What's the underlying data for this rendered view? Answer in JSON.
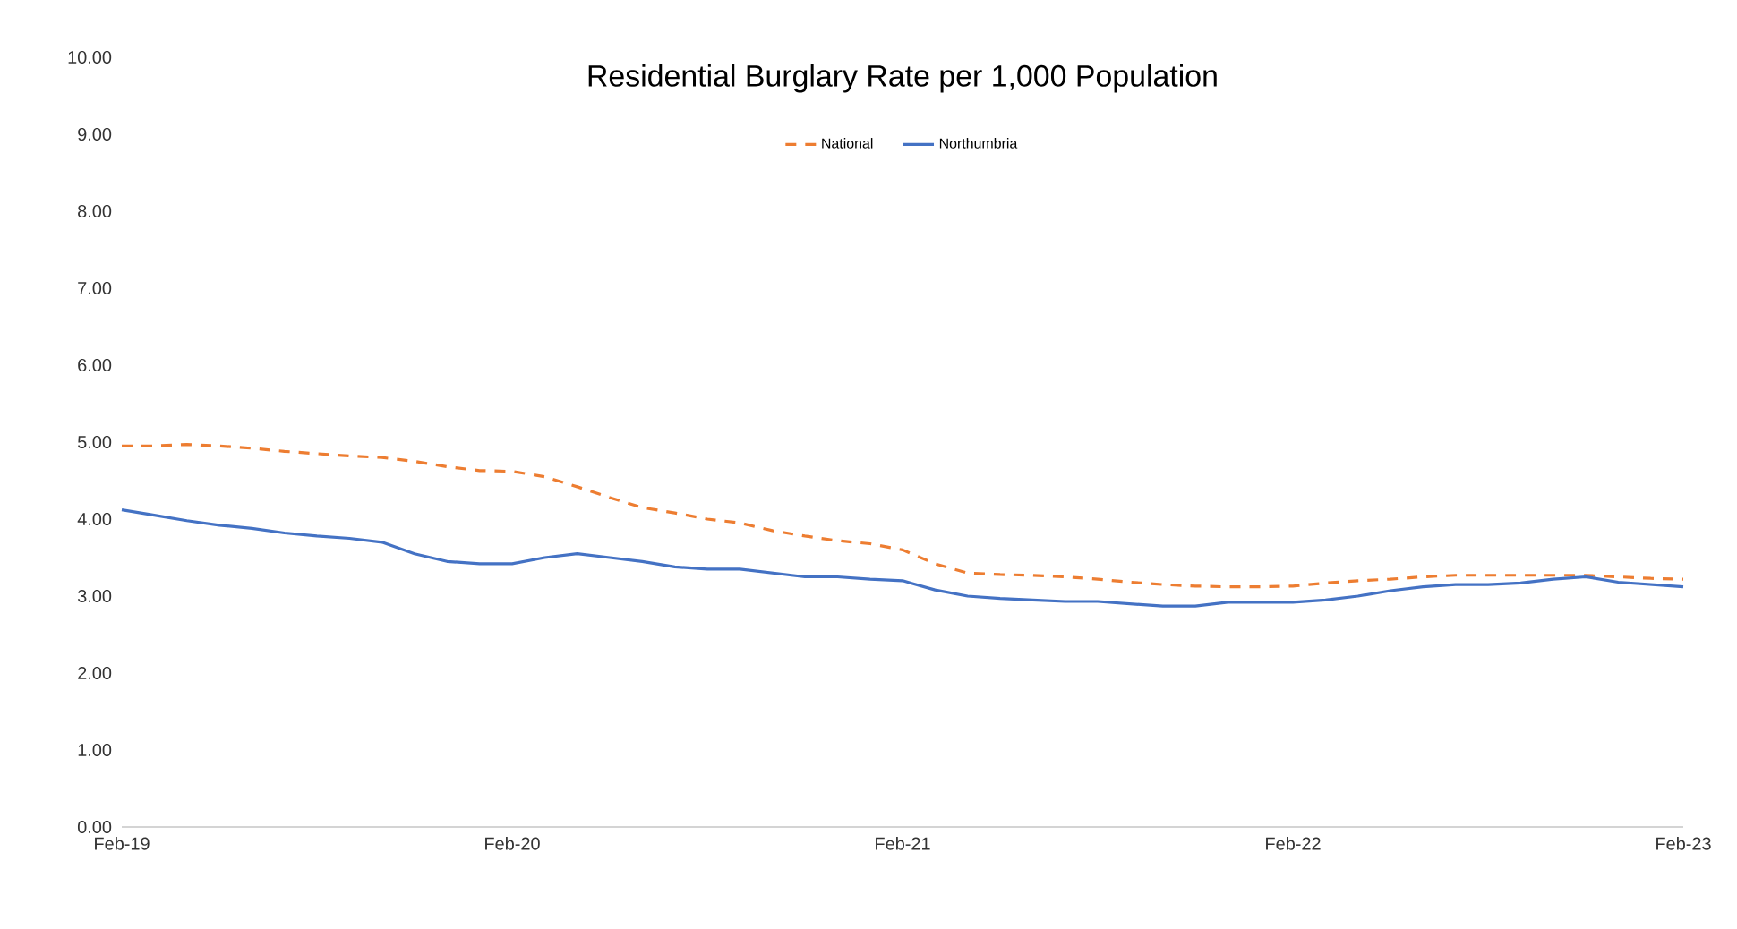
{
  "chart_data": {
    "type": "line",
    "title": "Residential Burglary Rate per 1,000 Population",
    "x": [
      "2019-02",
      "2019-03",
      "2019-04",
      "2019-05",
      "2019-06",
      "2019-07",
      "2019-08",
      "2019-09",
      "2019-10",
      "2019-11",
      "2019-12",
      "2020-01",
      "2020-02",
      "2020-03",
      "2020-04",
      "2020-05",
      "2020-06",
      "2020-07",
      "2020-08",
      "2020-09",
      "2020-10",
      "2020-11",
      "2020-12",
      "2021-01",
      "2021-02",
      "2021-03",
      "2021-04",
      "2021-05",
      "2021-06",
      "2021-07",
      "2021-08",
      "2021-09",
      "2021-10",
      "2021-11",
      "2021-12",
      "2022-01",
      "2022-02",
      "2022-03",
      "2022-04",
      "2022-05",
      "2022-06",
      "2022-07",
      "2022-08",
      "2022-09",
      "2022-10",
      "2022-11",
      "2022-12",
      "2023-01",
      "2023-02"
    ],
    "series": [
      {
        "name": "National",
        "color": "#ed7d31",
        "line_style": "dashed",
        "values": [
          4.95,
          4.95,
          4.97,
          4.95,
          4.92,
          4.88,
          4.85,
          4.82,
          4.8,
          4.75,
          4.68,
          4.63,
          4.62,
          4.55,
          4.42,
          4.28,
          4.15,
          4.08,
          4.0,
          3.95,
          3.85,
          3.78,
          3.72,
          3.68,
          3.6,
          3.42,
          3.3,
          3.28,
          3.27,
          3.25,
          3.22,
          3.18,
          3.15,
          3.13,
          3.12,
          3.12,
          3.13,
          3.17,
          3.2,
          3.22,
          3.25,
          3.27,
          3.27,
          3.27,
          3.27,
          3.27,
          3.25,
          3.23,
          3.22
        ]
      },
      {
        "name": "Northumbria",
        "color": "#4472c4",
        "line_style": "solid",
        "values": [
          4.12,
          4.05,
          3.98,
          3.92,
          3.88,
          3.82,
          3.78,
          3.75,
          3.7,
          3.55,
          3.45,
          3.42,
          3.42,
          3.5,
          3.55,
          3.5,
          3.45,
          3.38,
          3.35,
          3.35,
          3.3,
          3.25,
          3.25,
          3.22,
          3.2,
          3.08,
          3.0,
          2.97,
          2.95,
          2.93,
          2.93,
          2.9,
          2.87,
          2.87,
          2.92,
          2.92,
          2.92,
          2.95,
          3.0,
          3.07,
          3.12,
          3.15,
          3.15,
          3.17,
          3.22,
          3.25,
          3.18,
          3.15,
          3.12
        ]
      }
    ],
    "xlim": [
      "2019-02",
      "2023-02"
    ],
    "xticks": [
      {
        "value": "2019-02",
        "label": "Feb-19"
      },
      {
        "value": "2020-02",
        "label": "Feb-20"
      },
      {
        "value": "2021-02",
        "label": "Feb-21"
      },
      {
        "value": "2022-02",
        "label": "Feb-22"
      },
      {
        "value": "2023-02",
        "label": "Feb-23"
      }
    ],
    "ylim": [
      0,
      10
    ],
    "yticks": [
      {
        "value": 0,
        "label": "0.00"
      },
      {
        "value": 1,
        "label": "1.00"
      },
      {
        "value": 2,
        "label": "2.00"
      },
      {
        "value": 3,
        "label": "3.00"
      },
      {
        "value": 4,
        "label": "4.00"
      },
      {
        "value": 5,
        "label": "5.00"
      },
      {
        "value": 6,
        "label": "6.00"
      },
      {
        "value": 7,
        "label": "7.00"
      },
      {
        "value": 8,
        "label": "8.00"
      },
      {
        "value": 9,
        "label": "9.00"
      },
      {
        "value": 10,
        "label": "10.00"
      }
    ],
    "grid": false,
    "legend": "top",
    "marker": "none"
  }
}
